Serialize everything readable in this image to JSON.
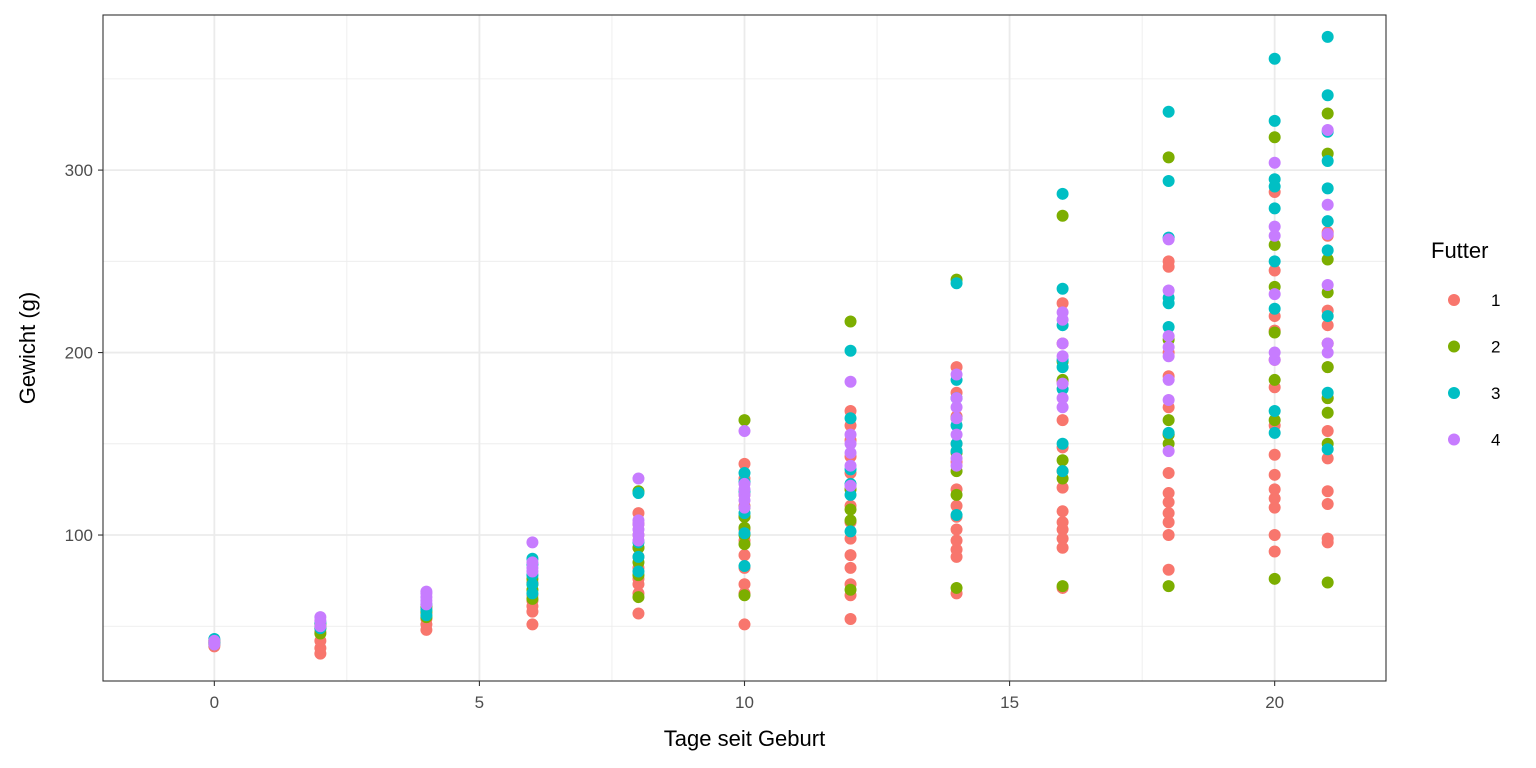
{
  "chart_data": {
    "type": "scatter",
    "xlabel": "Tage seit Geburt",
    "ylabel": "Gewicht (g)",
    "xlim": [
      -2.1,
      22.1
    ],
    "ylim": [
      20,
      385
    ],
    "x_ticks": [
      0,
      5,
      10,
      15,
      20
    ],
    "y_ticks": [
      100,
      200,
      300
    ],
    "grid": true,
    "legend": {
      "title": "Futter",
      "position": "right",
      "entries": [
        "1",
        "2",
        "3",
        "4"
      ]
    },
    "colors": {
      "1": "#F8766D",
      "2": "#7CAE00",
      "3": "#00BFC4",
      "4": "#C77CFF"
    },
    "series": [
      {
        "name": "1",
        "points": [
          [
            0,
            39
          ],
          [
            0,
            41
          ],
          [
            0,
            42
          ],
          [
            2,
            35
          ],
          [
            2,
            38
          ],
          [
            2,
            42
          ],
          [
            2,
            47
          ],
          [
            2,
            50
          ],
          [
            4,
            48
          ],
          [
            4,
            51
          ],
          [
            4,
            54
          ],
          [
            4,
            57
          ],
          [
            4,
            60
          ],
          [
            6,
            51
          ],
          [
            6,
            58
          ],
          [
            6,
            61
          ],
          [
            6,
            64
          ],
          [
            6,
            67
          ],
          [
            6,
            74
          ],
          [
            8,
            57
          ],
          [
            8,
            68
          ],
          [
            8,
            73
          ],
          [
            8,
            76
          ],
          [
            8,
            82
          ],
          [
            8,
            88
          ],
          [
            8,
            93
          ],
          [
            8,
            100
          ],
          [
            8,
            106
          ],
          [
            8,
            112
          ],
          [
            10,
            51
          ],
          [
            10,
            68
          ],
          [
            10,
            73
          ],
          [
            10,
            82
          ],
          [
            10,
            89
          ],
          [
            10,
            97
          ],
          [
            10,
            103
          ],
          [
            10,
            110
          ],
          [
            10,
            116
          ],
          [
            10,
            122
          ],
          [
            10,
            131
          ],
          [
            10,
            139
          ],
          [
            12,
            54
          ],
          [
            12,
            67
          ],
          [
            12,
            73
          ],
          [
            12,
            82
          ],
          [
            12,
            89
          ],
          [
            12,
            98
          ],
          [
            12,
            107
          ],
          [
            12,
            116
          ],
          [
            12,
            125
          ],
          [
            12,
            134
          ],
          [
            12,
            143
          ],
          [
            12,
            152
          ],
          [
            12,
            160
          ],
          [
            12,
            168
          ],
          [
            14,
            68
          ],
          [
            14,
            88
          ],
          [
            14,
            92
          ],
          [
            14,
            97
          ],
          [
            14,
            103
          ],
          [
            14,
            110
          ],
          [
            14,
            116
          ],
          [
            14,
            125
          ],
          [
            14,
            140
          ],
          [
            14,
            150
          ],
          [
            14,
            165
          ],
          [
            14,
            178
          ],
          [
            14,
            192
          ],
          [
            16,
            71
          ],
          [
            16,
            93
          ],
          [
            16,
            98
          ],
          [
            16,
            103
          ],
          [
            16,
            107
          ],
          [
            16,
            113
          ],
          [
            16,
            126
          ],
          [
            16,
            135
          ],
          [
            16,
            148
          ],
          [
            16,
            163
          ],
          [
            16,
            184
          ],
          [
            16,
            205
          ],
          [
            16,
            227
          ],
          [
            18,
            81
          ],
          [
            18,
            100
          ],
          [
            18,
            107
          ],
          [
            18,
            112
          ],
          [
            18,
            118
          ],
          [
            18,
            123
          ],
          [
            18,
            134
          ],
          [
            18,
            155
          ],
          [
            18,
            170
          ],
          [
            18,
            187
          ],
          [
            18,
            200
          ],
          [
            18,
            247
          ],
          [
            18,
            250
          ],
          [
            20,
            91
          ],
          [
            20,
            100
          ],
          [
            20,
            115
          ],
          [
            20,
            120
          ],
          [
            20,
            125
          ],
          [
            20,
            133
          ],
          [
            20,
            144
          ],
          [
            20,
            160
          ],
          [
            20,
            181
          ],
          [
            20,
            196
          ],
          [
            20,
            212
          ],
          [
            20,
            220
          ],
          [
            20,
            245
          ],
          [
            20,
            288
          ],
          [
            21,
            96
          ],
          [
            21,
            98
          ],
          [
            21,
            117
          ],
          [
            21,
            124
          ],
          [
            21,
            142
          ],
          [
            21,
            157
          ],
          [
            21,
            175
          ],
          [
            21,
            192
          ],
          [
            21,
            205
          ],
          [
            21,
            215
          ],
          [
            21,
            223
          ],
          [
            21,
            264
          ],
          [
            21,
            266
          ]
        ]
      },
      {
        "name": "2",
        "points": [
          [
            0,
            40
          ],
          [
            0,
            42
          ],
          [
            2,
            46
          ],
          [
            2,
            49
          ],
          [
            2,
            51
          ],
          [
            4,
            55
          ],
          [
            4,
            58
          ],
          [
            4,
            61
          ],
          [
            6,
            65
          ],
          [
            6,
            70
          ],
          [
            6,
            73
          ],
          [
            6,
            76
          ],
          [
            8,
            66
          ],
          [
            8,
            78
          ],
          [
            8,
            85
          ],
          [
            8,
            93
          ],
          [
            8,
            124
          ],
          [
            10,
            67
          ],
          [
            10,
            95
          ],
          [
            10,
            100
          ],
          [
            10,
            104
          ],
          [
            10,
            110
          ],
          [
            10,
            115
          ],
          [
            10,
            163
          ],
          [
            12,
            70
          ],
          [
            12,
            108
          ],
          [
            12,
            114
          ],
          [
            12,
            125
          ],
          [
            12,
            217
          ],
          [
            14,
            71
          ],
          [
            14,
            122
          ],
          [
            14,
            135
          ],
          [
            14,
            145
          ],
          [
            14,
            164
          ],
          [
            14,
            240
          ],
          [
            16,
            72
          ],
          [
            16,
            131
          ],
          [
            16,
            141
          ],
          [
            16,
            185
          ],
          [
            16,
            195
          ],
          [
            16,
            275
          ],
          [
            18,
            72
          ],
          [
            18,
            150
          ],
          [
            18,
            155
          ],
          [
            18,
            163
          ],
          [
            18,
            207
          ],
          [
            18,
            307
          ],
          [
            20,
            76
          ],
          [
            20,
            163
          ],
          [
            20,
            185
          ],
          [
            20,
            211
          ],
          [
            20,
            236
          ],
          [
            20,
            259
          ],
          [
            20,
            318
          ],
          [
            21,
            74
          ],
          [
            21,
            150
          ],
          [
            21,
            167
          ],
          [
            21,
            175
          ],
          [
            21,
            192
          ],
          [
            21,
            233
          ],
          [
            21,
            251
          ],
          [
            21,
            309
          ],
          [
            21,
            331
          ]
        ]
      },
      {
        "name": "3",
        "points": [
          [
            0,
            41
          ],
          [
            0,
            43
          ],
          [
            2,
            49
          ],
          [
            2,
            52
          ],
          [
            4,
            56
          ],
          [
            4,
            59
          ],
          [
            4,
            62
          ],
          [
            6,
            68
          ],
          [
            6,
            73
          ],
          [
            6,
            78
          ],
          [
            6,
            84
          ],
          [
            6,
            87
          ],
          [
            8,
            80
          ],
          [
            8,
            88
          ],
          [
            8,
            96
          ],
          [
            8,
            123
          ],
          [
            10,
            83
          ],
          [
            10,
            101
          ],
          [
            10,
            112
          ],
          [
            10,
            124
          ],
          [
            10,
            129
          ],
          [
            10,
            134
          ],
          [
            12,
            102
          ],
          [
            12,
            122
          ],
          [
            12,
            128
          ],
          [
            12,
            136
          ],
          [
            12,
            164
          ],
          [
            12,
            201
          ],
          [
            14,
            111
          ],
          [
            14,
            146
          ],
          [
            14,
            150
          ],
          [
            14,
            160
          ],
          [
            14,
            175
          ],
          [
            14,
            185
          ],
          [
            14,
            238
          ],
          [
            16,
            135
          ],
          [
            16,
            150
          ],
          [
            16,
            180
          ],
          [
            16,
            192
          ],
          [
            16,
            196
          ],
          [
            16,
            215
          ],
          [
            16,
            235
          ],
          [
            16,
            287
          ],
          [
            18,
            156
          ],
          [
            18,
            214
          ],
          [
            18,
            227
          ],
          [
            18,
            230
          ],
          [
            18,
            263
          ],
          [
            18,
            294
          ],
          [
            18,
            332
          ],
          [
            20,
            156
          ],
          [
            20,
            168
          ],
          [
            20,
            224
          ],
          [
            20,
            250
          ],
          [
            20,
            279
          ],
          [
            20,
            291
          ],
          [
            20,
            295
          ],
          [
            20,
            327
          ],
          [
            20,
            361
          ],
          [
            21,
            147
          ],
          [
            21,
            178
          ],
          [
            21,
            220
          ],
          [
            21,
            256
          ],
          [
            21,
            272
          ],
          [
            21,
            290
          ],
          [
            21,
            305
          ],
          [
            21,
            321
          ],
          [
            21,
            341
          ],
          [
            21,
            373
          ]
        ]
      },
      {
        "name": "4",
        "points": [
          [
            0,
            40
          ],
          [
            0,
            42
          ],
          [
            2,
            50
          ],
          [
            2,
            53
          ],
          [
            2,
            55
          ],
          [
            4,
            62
          ],
          [
            4,
            64
          ],
          [
            4,
            66
          ],
          [
            4,
            68
          ],
          [
            4,
            69
          ],
          [
            6,
            80
          ],
          [
            6,
            82
          ],
          [
            6,
            85
          ],
          [
            6,
            96
          ],
          [
            8,
            97
          ],
          [
            8,
            100
          ],
          [
            8,
            103
          ],
          [
            8,
            106
          ],
          [
            8,
            108
          ],
          [
            8,
            131
          ],
          [
            10,
            115
          ],
          [
            10,
            119
          ],
          [
            10,
            122
          ],
          [
            10,
            125
          ],
          [
            10,
            128
          ],
          [
            10,
            157
          ],
          [
            12,
            127
          ],
          [
            12,
            138
          ],
          [
            12,
            145
          ],
          [
            12,
            150
          ],
          [
            12,
            155
          ],
          [
            12,
            184
          ],
          [
            14,
            138
          ],
          [
            14,
            142
          ],
          [
            14,
            155
          ],
          [
            14,
            164
          ],
          [
            14,
            170
          ],
          [
            14,
            175
          ],
          [
            14,
            188
          ],
          [
            16,
            170
          ],
          [
            16,
            175
          ],
          [
            16,
            183
          ],
          [
            16,
            198
          ],
          [
            16,
            205
          ],
          [
            16,
            218
          ],
          [
            16,
            222
          ],
          [
            18,
            146
          ],
          [
            18,
            174
          ],
          [
            18,
            185
          ],
          [
            18,
            198
          ],
          [
            18,
            203
          ],
          [
            18,
            209
          ],
          [
            18,
            234
          ],
          [
            18,
            262
          ],
          [
            20,
            196
          ],
          [
            20,
            200
          ],
          [
            20,
            232
          ],
          [
            20,
            264
          ],
          [
            20,
            269
          ],
          [
            20,
            304
          ],
          [
            21,
            200
          ],
          [
            21,
            205
          ],
          [
            21,
            237
          ],
          [
            21,
            265
          ],
          [
            21,
            281
          ],
          [
            21,
            322
          ]
        ]
      }
    ]
  }
}
